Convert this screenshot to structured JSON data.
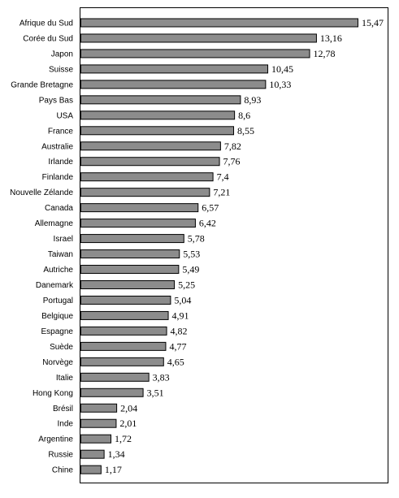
{
  "chart_data": {
    "type": "bar",
    "orientation": "horizontal",
    "categories": [
      "Afrique du Sud",
      "Corée du Sud",
      "Japon",
      "Suisse",
      "Grande Bretagne",
      "Pays Bas",
      "USA",
      "France",
      "Australie",
      "Irlande",
      "Finlande",
      "Nouvelle Zélande",
      "Canada",
      "Allemagne",
      "Israel",
      "Taiwan",
      "Autriche",
      "Danemark",
      "Portugal",
      "Belgique",
      "Espagne",
      "Suède",
      "Norvège",
      "Italie",
      "Hong Kong",
      "Brésil",
      "Inde",
      "Argentine",
      "Russie",
      "Chine"
    ],
    "values": [
      15.47,
      13.16,
      12.78,
      10.45,
      10.33,
      8.93,
      8.6,
      8.55,
      7.82,
      7.76,
      7.4,
      7.21,
      6.57,
      6.42,
      5.78,
      5.53,
      5.49,
      5.25,
      5.04,
      4.91,
      4.82,
      4.77,
      4.65,
      3.83,
      3.51,
      2.04,
      2.01,
      1.72,
      1.34,
      1.17
    ],
    "value_labels": [
      "15,47",
      "13,16",
      "12,78",
      "10,45",
      "10,33",
      "8,93",
      "8,6",
      "8,55",
      "7,82",
      "7,76",
      "7,4",
      "7,21",
      "6,57",
      "6,42",
      "5,78",
      "5,53",
      "5,49",
      "5,25",
      "5,04",
      "4,91",
      "4,82",
      "4,77",
      "4,65",
      "3,83",
      "3,51",
      "2,04",
      "2,01",
      "1,72",
      "1,34",
      "1,17"
    ],
    "title": "",
    "xlabel": "",
    "ylabel": "",
    "xlim": [
      0,
      15.47
    ],
    "grid": false,
    "legend": "none",
    "colors": {
      "bar_fill": "#8c8c8c",
      "bar_stroke": "#000000",
      "frame": "#000000"
    }
  }
}
